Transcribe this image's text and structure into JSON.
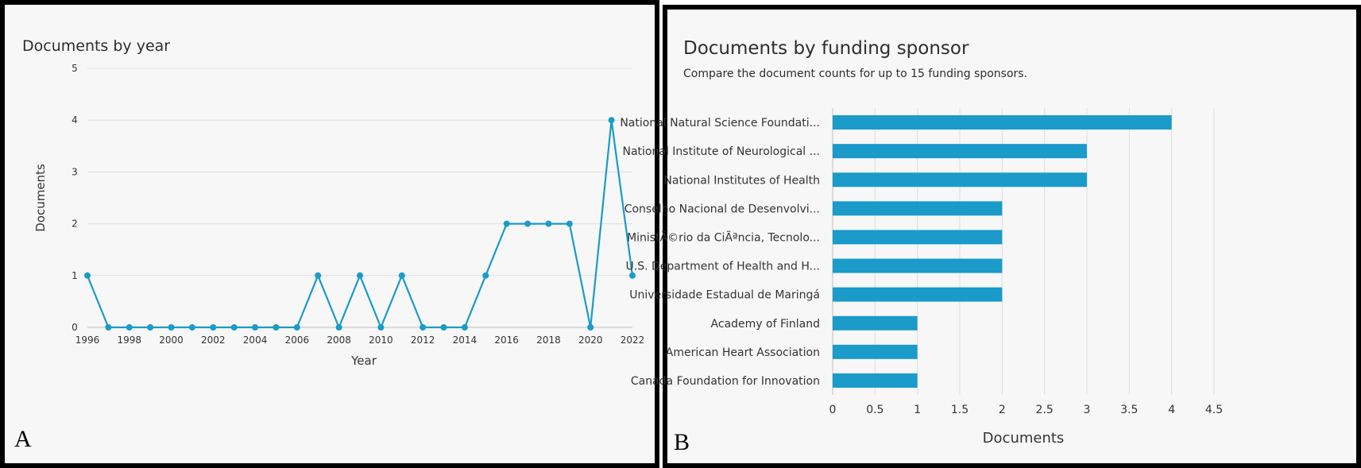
{
  "chart_data": [
    {
      "type": "line",
      "title": "Documents by year",
      "xlabel": "Year",
      "ylabel": "Documents",
      "x": [
        1996,
        1997,
        1998,
        1999,
        2000,
        2001,
        2002,
        2003,
        2004,
        2005,
        2006,
        2007,
        2008,
        2009,
        2010,
        2011,
        2012,
        2013,
        2014,
        2015,
        2016,
        2017,
        2018,
        2019,
        2020,
        2021,
        2022
      ],
      "values": [
        1,
        0,
        0,
        0,
        0,
        0,
        0,
        0,
        0,
        0,
        0,
        1,
        0,
        1,
        0,
        1,
        0,
        0,
        0,
        1,
        2,
        2,
        2,
        2,
        0,
        4,
        1
      ],
      "x_tick_labels": [
        "1996",
        "1998",
        "2000",
        "2002",
        "2004",
        "2006",
        "2008",
        "2010",
        "2012",
        "2014",
        "2016",
        "2018",
        "2020",
        "2022"
      ],
      "y_tick_labels": [
        "0",
        "1",
        "2",
        "3",
        "4",
        "5"
      ],
      "ylim": [
        0,
        5
      ],
      "grid": "horizontal",
      "color": "#1a9bc9",
      "panel_label": "A"
    },
    {
      "type": "bar",
      "orientation": "horizontal",
      "title": "Documents by funding sponsor",
      "subtitle": "Compare the document counts for up to 15 funding sponsors.",
      "xlabel": "Documents",
      "categories": [
        "National Natural Science Foundati...",
        "National Institute of Neurological ...",
        "National Institutes of Health",
        "Conselho Nacional de Desenvolvi...",
        "MinistÃ©rio da CiÃªncia, Tecnolo...",
        "U.S. Department of Health and H...",
        "Universidade Estadual de Maringá",
        "Academy of Finland",
        "American Heart Association",
        "Canada Foundation for Innovation"
      ],
      "values": [
        4,
        3,
        3,
        2,
        2,
        2,
        2,
        1,
        1,
        1
      ],
      "x_tick_labels": [
        "0",
        "0.5",
        "1",
        "1.5",
        "2",
        "2.5",
        "3",
        "3.5",
        "4",
        "4.5"
      ],
      "xlim": [
        0,
        4.5
      ],
      "grid": "vertical",
      "color": "#1a9bc9",
      "panel_label": "B"
    }
  ]
}
